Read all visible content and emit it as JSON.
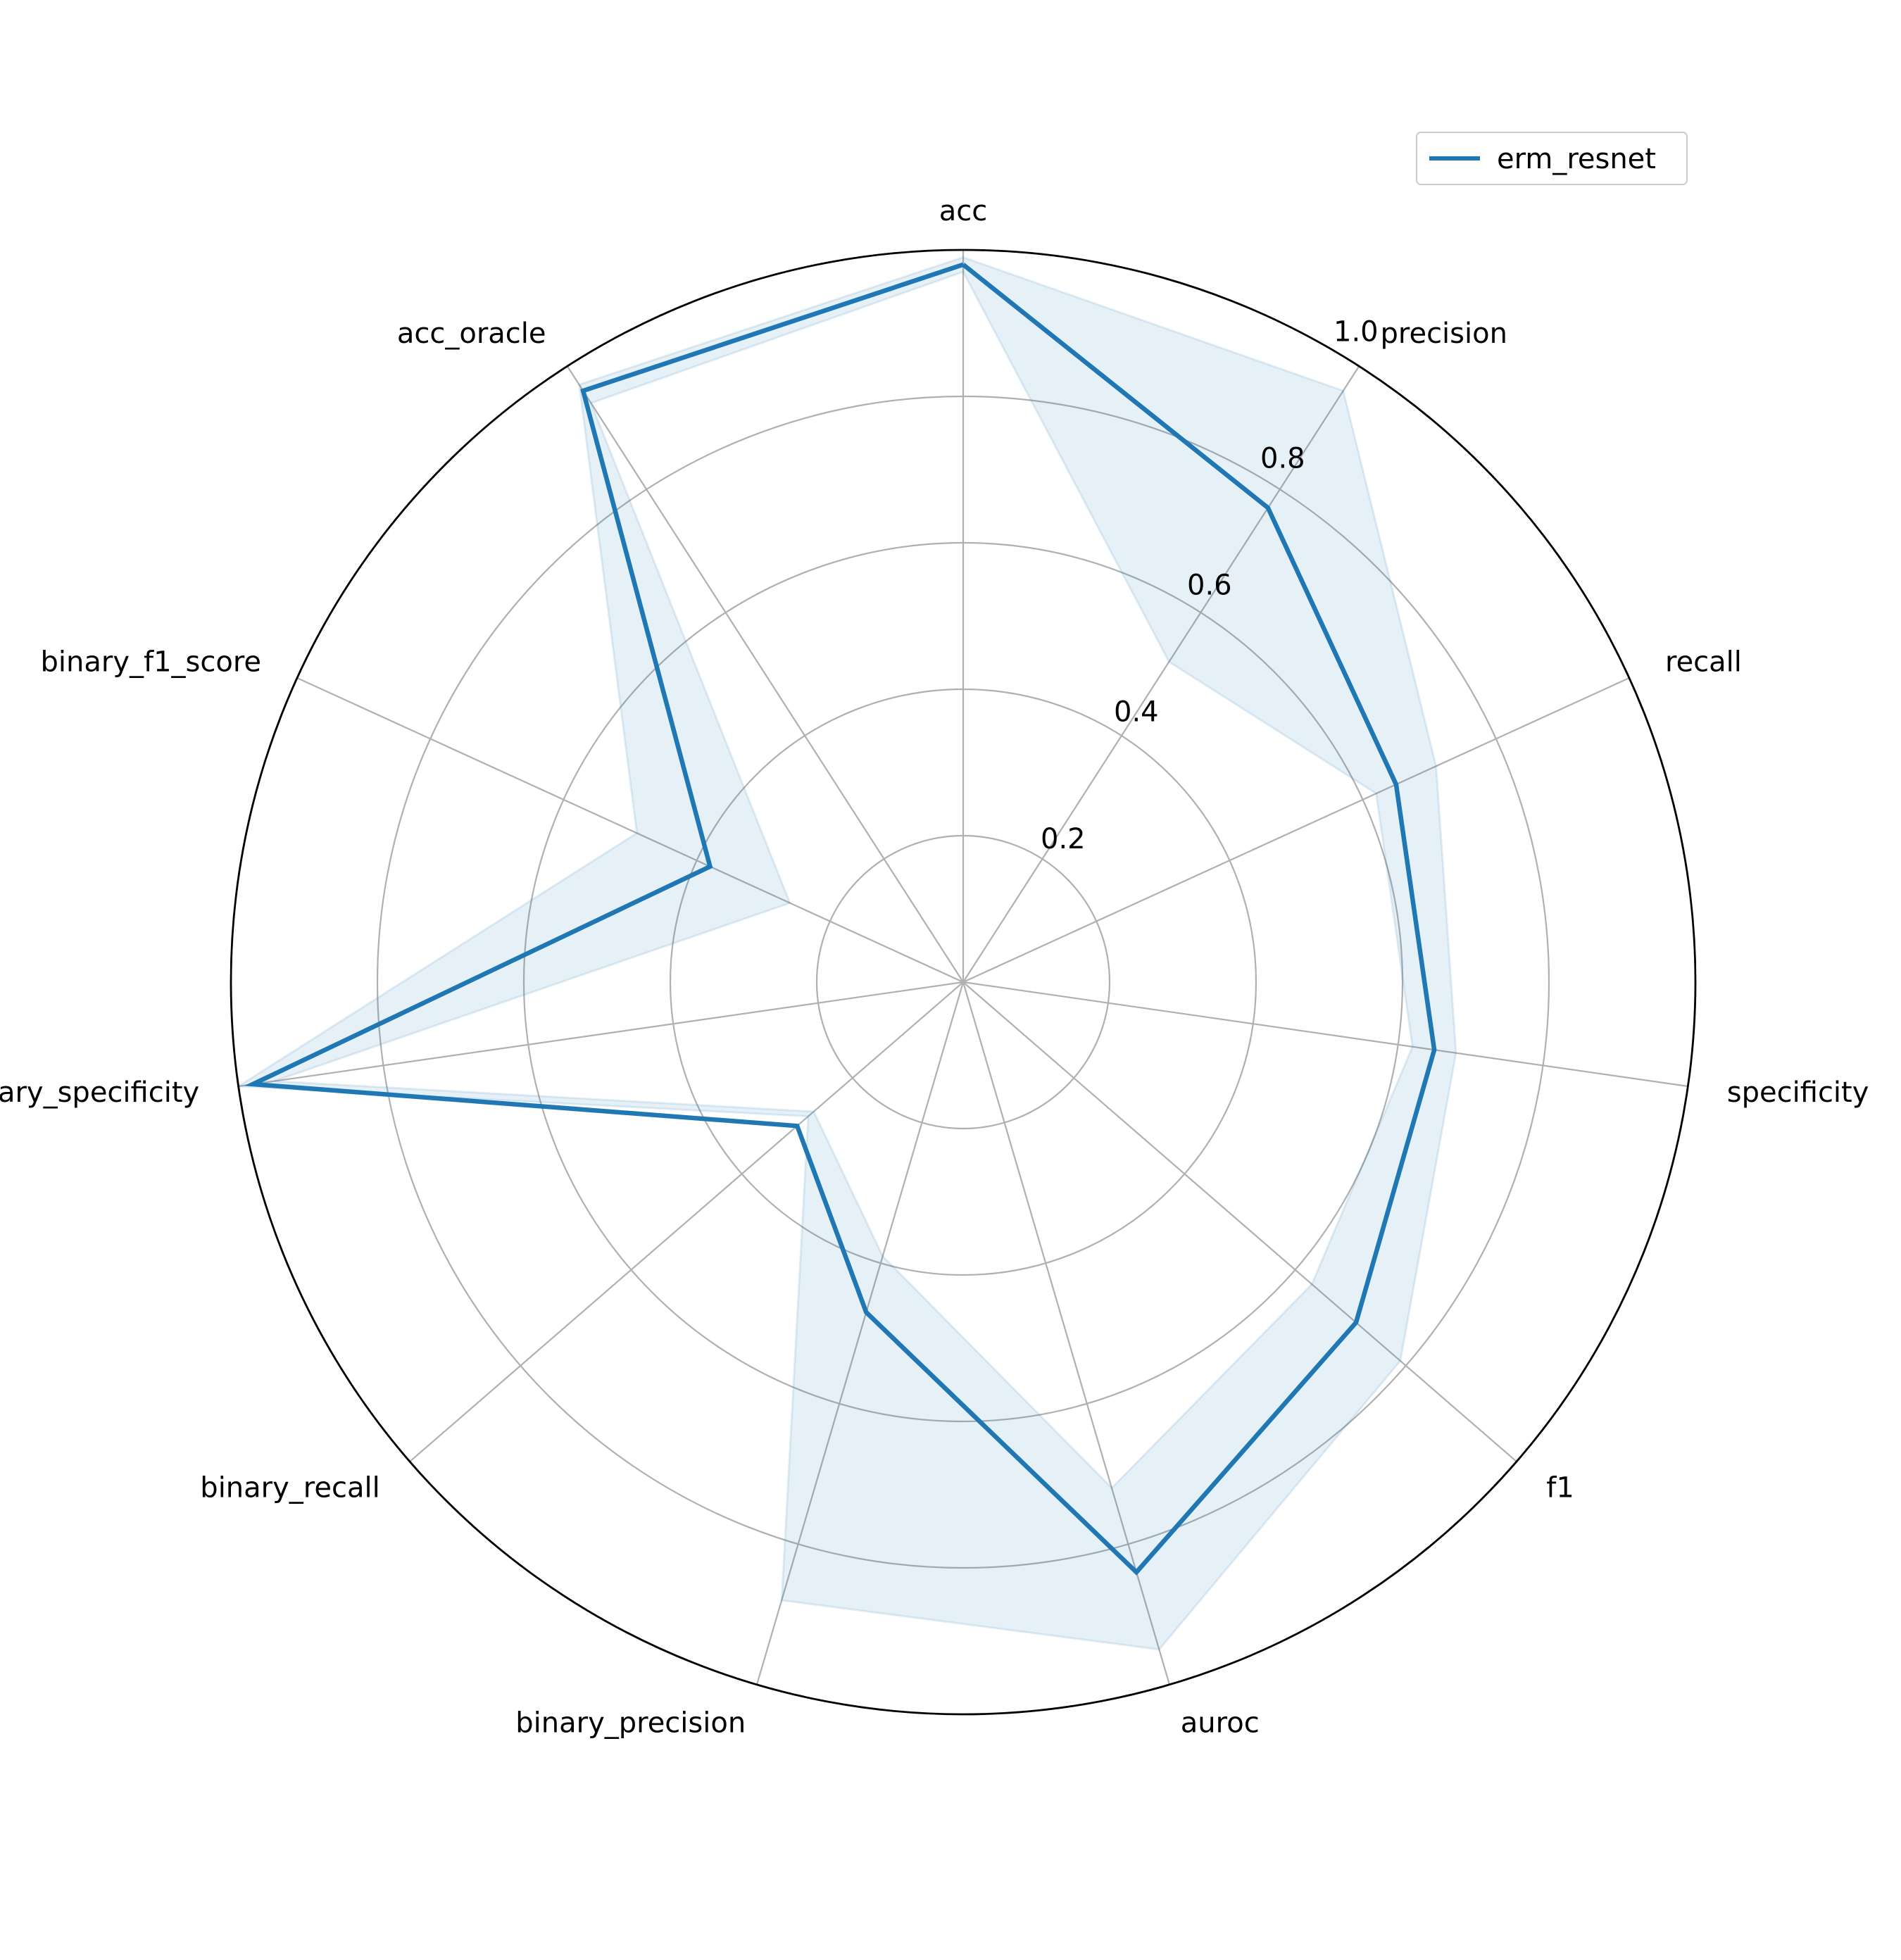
{
  "chart_data": {
    "type": "radar",
    "axes": [
      "acc",
      "precision",
      "recall",
      "specificity",
      "f1",
      "auroc",
      "binary_precision",
      "binary_recall",
      "binary_specificity",
      "binary_f1_score",
      "acc_oracle"
    ],
    "rlim": [
      0,
      1.0
    ],
    "rticks": [
      0.2,
      0.4,
      0.6,
      0.8,
      1.0
    ],
    "rtick_labels": [
      "0.2",
      "0.4",
      "0.6",
      "0.8",
      "1.0"
    ],
    "grid": true,
    "legend_position": "top-right",
    "series": [
      {
        "name": "erm_resnet",
        "color": "#1f77b4",
        "values": [
          0.98,
          0.77,
          0.65,
          0.65,
          0.71,
          0.84,
          0.47,
          0.3,
          0.98,
          0.38,
          0.96
        ],
        "band_lower": [
          0.97,
          0.52,
          0.62,
          0.62,
          0.63,
          0.72,
          0.39,
          0.27,
          0.95,
          0.26,
          0.94
        ],
        "band_upper": [
          0.99,
          0.96,
          0.71,
          0.68,
          0.79,
          0.95,
          0.88,
          0.28,
          1.0,
          0.49,
          0.97
        ]
      }
    ]
  }
}
